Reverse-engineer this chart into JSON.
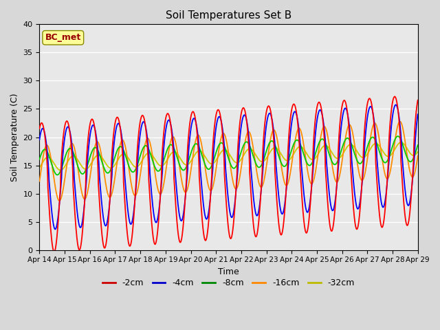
{
  "title": "Soil Temperatures Set B",
  "xlabel": "Time",
  "ylabel": "Soil Temperature (C)",
  "annotation": "BC_met",
  "ylim": [
    0,
    40
  ],
  "xlim": [
    0,
    360
  ],
  "yticks": [
    0,
    5,
    10,
    15,
    20,
    25,
    30,
    35,
    40
  ],
  "xtick_labels": [
    "Apr 14",
    "Apr 15",
    "Apr 16",
    "Apr 17",
    "Apr 18",
    "Apr 19",
    "Apr 20",
    "Apr 21",
    "Apr 22",
    "Apr 23",
    "Apr 24",
    "Apr 25",
    "Apr 26",
    "Apr 27",
    "Apr 28",
    "Apr 29"
  ],
  "xtick_positions": [
    0,
    24,
    48,
    72,
    96,
    120,
    144,
    168,
    192,
    216,
    240,
    264,
    288,
    312,
    336,
    360
  ],
  "colors": {
    "-2cm": "#FF0000",
    "-4cm": "#0000FF",
    "-8cm": "#00CC00",
    "-16cm": "#FF8C00",
    "-32cm": "#CCCC00"
  },
  "background_color": "#E8E8E8",
  "grid_color": "#FFFFFF",
  "legend_colors": {
    "-2cm": "#CC0000",
    "-4cm": "#0000CC",
    "-8cm": "#008800",
    "-16cm": "#FF8800",
    "-32cm": "#BBBB00"
  }
}
